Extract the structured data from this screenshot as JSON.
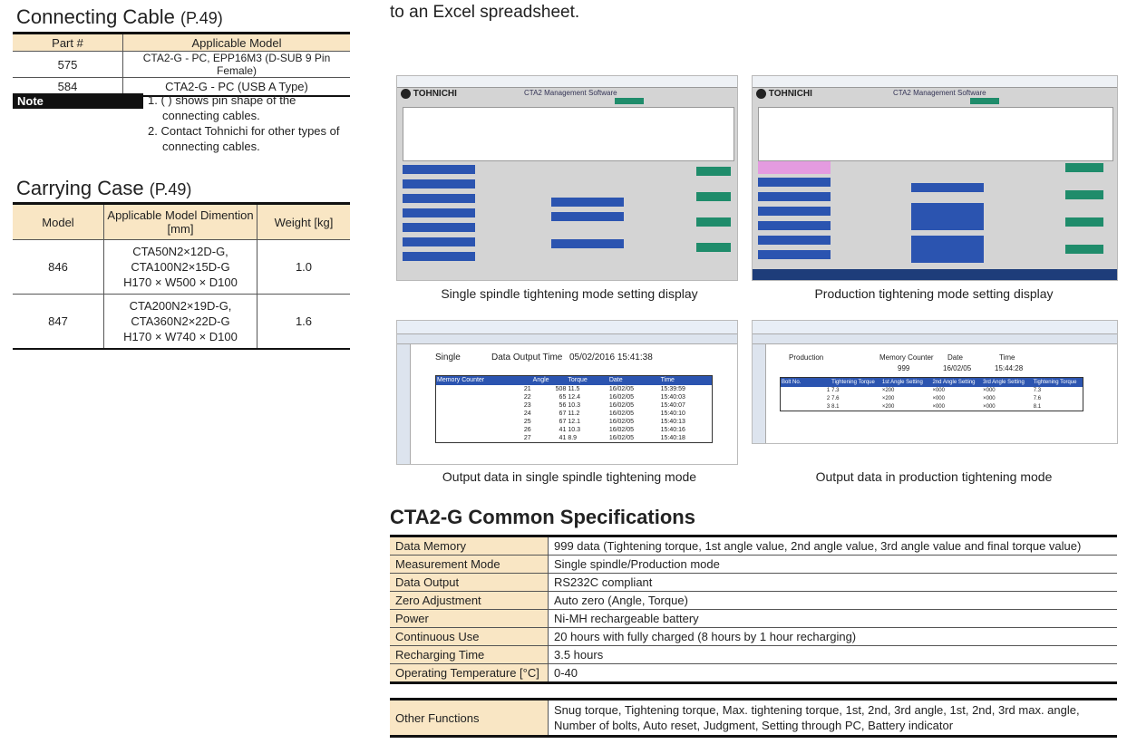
{
  "cable": {
    "title": "Connecting Cable",
    "page": "(P.49)",
    "headers": [
      "Part #",
      "Applicable Model"
    ],
    "rows": [
      [
        "575",
        "CTA2-G - PC, EPP16M3 (D-SUB 9 Pin Female)"
      ],
      [
        "584",
        "CTA2-G - PC (USB A Type)"
      ]
    ]
  },
  "note": {
    "label": "Note",
    "items": [
      "1. (   ) shows pin shape of the connecting cables.",
      "2. Contact Tohnichi for other types of connecting cables."
    ]
  },
  "case": {
    "title": "Carrying Case",
    "page": "(P.49)",
    "headers": [
      "Model",
      "Applicable Model Dimention [mm]",
      "Weight [kg]"
    ],
    "rows": [
      {
        "model": "846",
        "lines": [
          "CTA50N2×12D-G,",
          "CTA100N2×15D-G",
          "H170 × W500 × D100"
        ],
        "weight": "1.0"
      },
      {
        "model": "847",
        "lines": [
          "CTA200N2×19D-G,",
          "CTA360N2×22D-G",
          "H170 × W740 × D100"
        ],
        "weight": "1.6"
      }
    ]
  },
  "intro_tail": "to an Excel spreadsheet.",
  "screens": [
    {
      "caption": "Single spindle tightening mode setting display",
      "app_title": "CTA2 Management Software",
      "logo": "TOHNICHI"
    },
    {
      "caption": "Production tightening mode setting display",
      "app_title": "CTA2 Management Software",
      "logo": "TOHNICHI"
    }
  ],
  "excel": [
    {
      "caption": "Output data in single spindle tightening mode",
      "mode_label": "Single",
      "output_time_label": "Data Output Time",
      "output_time": "05/02/2016 15:41:38",
      "headers": [
        "Memory Counter",
        "Angle",
        "Torque",
        "Date",
        "Time"
      ],
      "rows": [
        [
          "21",
          "508",
          "11.5",
          "16/02/05",
          "15:39:59"
        ],
        [
          "22",
          "65",
          "12.4",
          "16/02/05",
          "15:40:03"
        ],
        [
          "23",
          "56",
          "10.3",
          "16/02/05",
          "15:40:07"
        ],
        [
          "24",
          "67",
          "11.2",
          "16/02/05",
          "15:40:10"
        ],
        [
          "25",
          "67",
          "12.1",
          "16/02/05",
          "15:40:13"
        ],
        [
          "26",
          "41",
          "10.3",
          "16/02/05",
          "15:40:16"
        ],
        [
          "27",
          "41",
          "8.9",
          "16/02/05",
          "15:40:18"
        ]
      ]
    },
    {
      "caption": "Output data in production tightening mode",
      "mode_label": "Production",
      "counter_label": "Memory Counter",
      "counter": "999",
      "date_label": "Date",
      "date": "16/02/05",
      "time_label": "Time",
      "time": "15:44:28",
      "headers": [
        "Bolt No.",
        "Tightening Torque",
        "1st Angle Setting",
        "2nd Angle Setting",
        "3rd Angle Setting",
        "Tightening Torque"
      ],
      "rows": [
        [
          "1",
          "7.3",
          "×200",
          "×000",
          "×000",
          "7.3"
        ],
        [
          "2",
          "7.6",
          "×200",
          "×000",
          "×000",
          "7.6"
        ],
        [
          "3",
          "8.1",
          "×200",
          "×000",
          "×000",
          "8.1"
        ]
      ]
    }
  ],
  "spec": {
    "title": "CTA2-G Common Specifications",
    "rows": [
      [
        "Data Memory",
        "999 data (Tightening torque, 1st angle value, 2nd angle value, 3rd angle value and final torque value)"
      ],
      [
        "Measurement Mode",
        "Single spindle/Production mode"
      ],
      [
        "Data Output",
        "RS232C compliant"
      ],
      [
        "Zero Adjustment",
        "Auto zero (Angle, Torque)"
      ],
      [
        "Power",
        "Ni-MH rechargeable battery"
      ],
      [
        "Continuous Use",
        "20 hours with fully charged (8 hours by 1 hour recharging)"
      ],
      [
        "Recharging Time",
        "3.5 hours"
      ],
      [
        "Operating Temperature [°C]",
        "0-40"
      ]
    ],
    "other_label": "Other Functions",
    "other_lines": [
      "Snug torque, Tightening torque, Max. tightening torque, 1st, 2nd, 3rd angle, 1st, 2nd, 3rd max. angle,",
      "Number of bolts, Auto reset, Judgment, Setting through PC, Battery indicator"
    ]
  },
  "colors": {
    "header_fill": "#f9e6c4",
    "app_teal": "#1f8c6b",
    "app_blue": "#2b54b0"
  }
}
